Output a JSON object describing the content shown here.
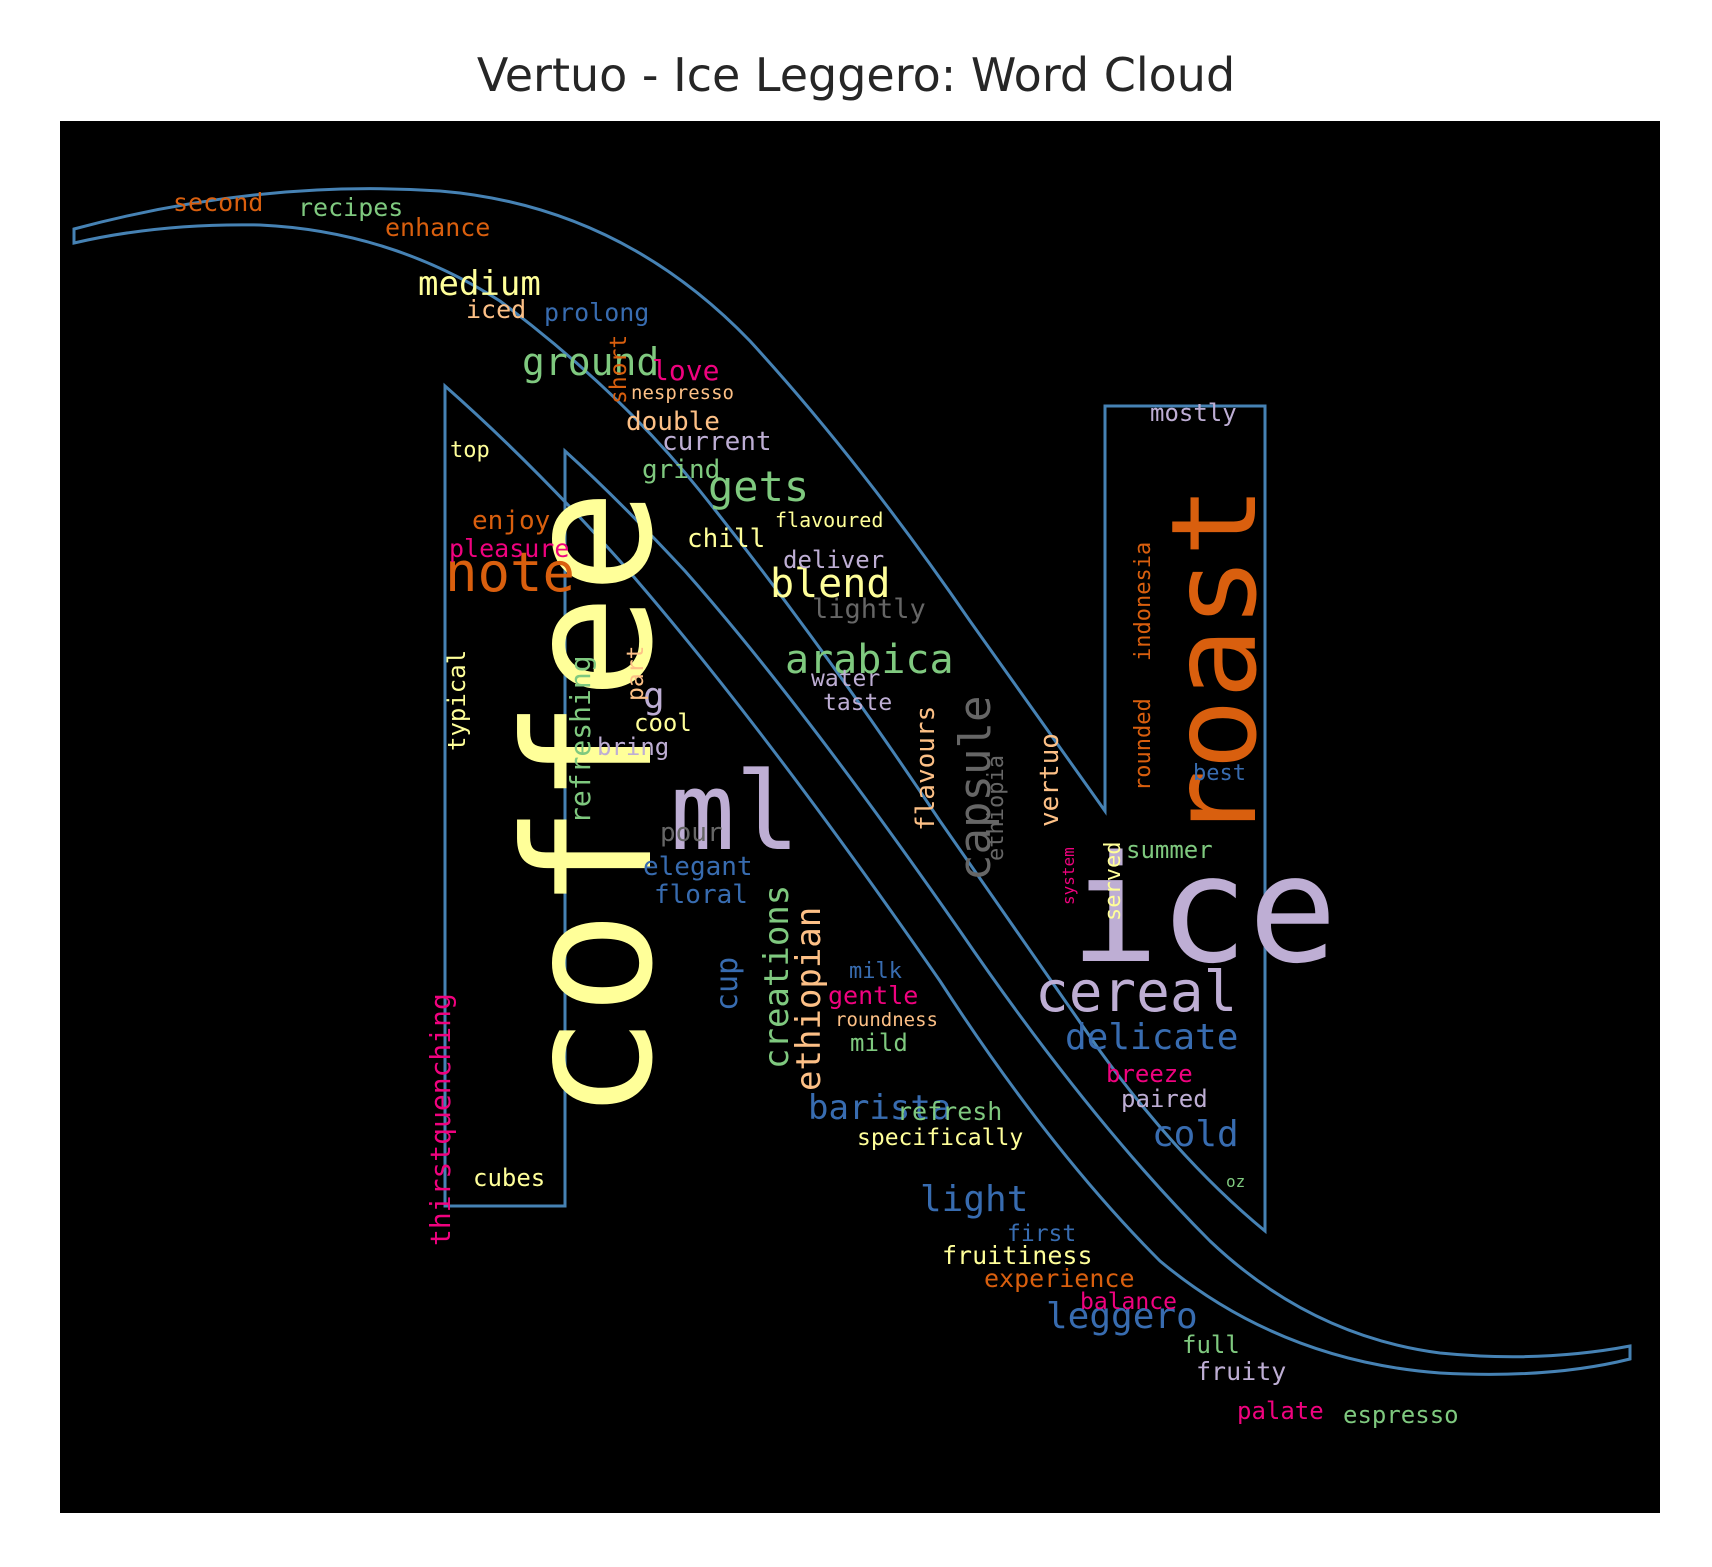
{
  "chart_data": {
    "type": "wordcloud",
    "title": "Vertuo - Ice Leggero: Word Cloud",
    "background": "#000000",
    "mask_outline_color": "#4682b4",
    "words": [
      {
        "text": "coffee",
        "color": "#ffff99",
        "rotated": true
      },
      {
        "text": "ice",
        "color": "#beaed4",
        "rotated": false
      },
      {
        "text": "roast",
        "color": "#d95f0e",
        "rotated": true
      },
      {
        "text": "ml",
        "color": "#beaed4",
        "rotated": false
      },
      {
        "text": "note",
        "color": "#d95f0e",
        "rotated": false
      },
      {
        "text": "cereal",
        "color": "#beaed4",
        "rotated": false
      },
      {
        "text": "capsule",
        "color": "#666666",
        "rotated": true
      },
      {
        "text": "blend",
        "color": "#ffff99",
        "rotated": false
      },
      {
        "text": "arabica",
        "color": "#7fc97f",
        "rotated": false
      },
      {
        "text": "gets",
        "color": "#7fc97f",
        "rotated": false
      },
      {
        "text": "ground",
        "color": "#7fc97f",
        "rotated": false
      },
      {
        "text": "medium",
        "color": "#ffff99",
        "rotated": false
      },
      {
        "text": "creations",
        "color": "#7fc97f",
        "rotated": true
      },
      {
        "text": "ethiopian",
        "color": "#fdc086",
        "rotated": true
      },
      {
        "text": "delicate",
        "color": "#386cb0",
        "rotated": false
      },
      {
        "text": "barista",
        "color": "#386cb0",
        "rotated": false
      },
      {
        "text": "leggero",
        "color": "#386cb0",
        "rotated": false
      },
      {
        "text": "light",
        "color": "#386cb0",
        "rotated": false
      },
      {
        "text": "cold",
        "color": "#386cb0",
        "rotated": false
      },
      {
        "text": "thirstquenching",
        "color": "#f0027f",
        "rotated": true
      },
      {
        "text": "refreshing",
        "color": "#7fc97f",
        "rotated": true
      },
      {
        "text": "cup",
        "color": "#386cb0",
        "rotated": true
      },
      {
        "text": "flavours",
        "color": "#fdc086",
        "rotated": true
      },
      {
        "text": "vertuo",
        "color": "#fdc086",
        "rotated": true
      },
      {
        "text": "g",
        "color": "#beaed4",
        "rotated": false
      },
      {
        "text": "typical",
        "color": "#ffff99",
        "rotated": true
      },
      {
        "text": "rounded",
        "color": "#d95f0e",
        "rotated": true
      },
      {
        "text": "indonesia",
        "color": "#d95f0e",
        "rotated": true
      },
      {
        "text": "ethiopia",
        "color": "#666666",
        "rotated": true
      },
      {
        "text": "enjoy",
        "color": "#d95f0e",
        "rotated": false
      },
      {
        "text": "pleasure",
        "color": "#f0027f",
        "rotated": false
      },
      {
        "text": "double",
        "color": "#fdc086",
        "rotated": false
      },
      {
        "text": "current",
        "color": "#beaed4",
        "rotated": false
      },
      {
        "text": "grind",
        "color": "#7fc97f",
        "rotated": false
      },
      {
        "text": "chill",
        "color": "#ffff99",
        "rotated": false
      },
      {
        "text": "deliver",
        "color": "#beaed4",
        "rotated": false
      },
      {
        "text": "lightly",
        "color": "#666666",
        "rotated": false
      },
      {
        "text": "water",
        "color": "#beaed4",
        "rotated": false
      },
      {
        "text": "taste",
        "color": "#beaed4",
        "rotated": false
      },
      {
        "text": "cool",
        "color": "#ffff99",
        "rotated": false
      },
      {
        "text": "bring",
        "color": "#beaed4",
        "rotated": false
      },
      {
        "text": "pour",
        "color": "#666666",
        "rotated": false
      },
      {
        "text": "elegant",
        "color": "#386cb0",
        "rotated": false
      },
      {
        "text": "floral",
        "color": "#386cb0",
        "rotated": false
      },
      {
        "text": "part",
        "color": "#fdc086",
        "rotated": true
      },
      {
        "text": "short",
        "color": "#d95f0e",
        "rotated": true
      },
      {
        "text": "love",
        "color": "#f0027f",
        "rotated": false
      },
      {
        "text": "nespresso",
        "color": "#fdc086",
        "rotated": false
      },
      {
        "text": "iced",
        "color": "#fdc086",
        "rotated": false
      },
      {
        "text": "prolong",
        "color": "#386cb0",
        "rotated": false
      },
      {
        "text": "second",
        "color": "#d95f0e",
        "rotated": false
      },
      {
        "text": "recipes",
        "color": "#7fc97f",
        "rotated": false
      },
      {
        "text": "enhance",
        "color": "#d95f0e",
        "rotated": false
      },
      {
        "text": "top",
        "color": "#ffff99",
        "rotated": false
      },
      {
        "text": "flavoured",
        "color": "#ffff99",
        "rotated": false
      },
      {
        "text": "mostly",
        "color": "#beaed4",
        "rotated": false
      },
      {
        "text": "best",
        "color": "#386cb0",
        "rotated": false
      },
      {
        "text": "summer",
        "color": "#7fc97f",
        "rotated": false
      },
      {
        "text": "served",
        "color": "#ffff99",
        "rotated": true
      },
      {
        "text": "system",
        "color": "#f0027f",
        "rotated": true
      },
      {
        "text": "breeze",
        "color": "#f0027f",
        "rotated": false
      },
      {
        "text": "paired",
        "color": "#beaed4",
        "rotated": false
      },
      {
        "text": "oz",
        "color": "#7fc97f",
        "rotated": false
      },
      {
        "text": "milk",
        "color": "#386cb0",
        "rotated": false
      },
      {
        "text": "gentle",
        "color": "#f0027f",
        "rotated": false
      },
      {
        "text": "roundness",
        "color": "#fdc086",
        "rotated": false
      },
      {
        "text": "mild",
        "color": "#7fc97f",
        "rotated": false
      },
      {
        "text": "refresh",
        "color": "#7fc97f",
        "rotated": false
      },
      {
        "text": "specifically",
        "color": "#ffff99",
        "rotated": false
      },
      {
        "text": "first",
        "color": "#386cb0",
        "rotated": false
      },
      {
        "text": "fruitiness",
        "color": "#ffff99",
        "rotated": false
      },
      {
        "text": "experience",
        "color": "#d95f0e",
        "rotated": false
      },
      {
        "text": "balance",
        "color": "#f0027f",
        "rotated": false
      },
      {
        "text": "full",
        "color": "#7fc97f",
        "rotated": false
      },
      {
        "text": "fruity",
        "color": "#beaed4",
        "rotated": false
      },
      {
        "text": "palate",
        "color": "#f0027f",
        "rotated": false
      },
      {
        "text": "espresso",
        "color": "#7fc97f",
        "rotated": false
      },
      {
        "text": "cubes",
        "color": "#ffff99",
        "rotated": false
      }
    ]
  }
}
